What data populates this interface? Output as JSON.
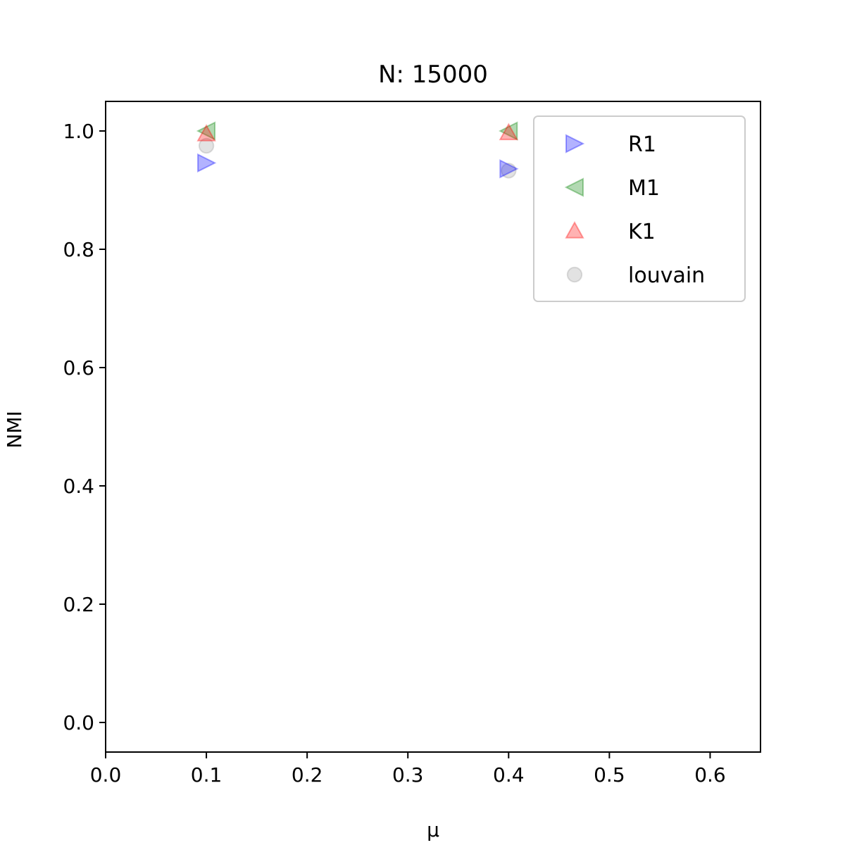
{
  "chart_data": {
    "type": "scatter",
    "title": "N: 15000",
    "xlabel": "μ",
    "ylabel": "NMI",
    "xlim": [
      0.0,
      0.65
    ],
    "ylim": [
      -0.05,
      1.05
    ],
    "xticks": [
      0.0,
      0.1,
      0.2,
      0.3,
      0.4,
      0.5,
      0.6
    ],
    "xtick_labels": [
      "0.0",
      "0.1",
      "0.2",
      "0.3",
      "0.4",
      "0.5",
      "0.6"
    ],
    "yticks": [
      0.0,
      0.2,
      0.4,
      0.6,
      0.8,
      1.0
    ],
    "ytick_labels": [
      "0.0",
      "0.2",
      "0.4",
      "0.6",
      "0.8",
      "1.0"
    ],
    "grid": false,
    "legend_position": "top-right",
    "series": [
      {
        "name": "R1",
        "marker": "triangle-right",
        "color": "#0000ff",
        "x": [
          0.1,
          0.4
        ],
        "y": [
          0.946,
          0.936
        ]
      },
      {
        "name": "M1",
        "marker": "triangle-left",
        "color": "#008000",
        "x": [
          0.1,
          0.4
        ],
        "y": [
          1.0,
          1.0
        ]
      },
      {
        "name": "K1",
        "marker": "triangle-up",
        "color": "#ff0000",
        "x": [
          0.1,
          0.4
        ],
        "y": [
          0.995,
          0.997
        ]
      },
      {
        "name": "louvain",
        "marker": "circle",
        "color": "#a0a0a0",
        "x": [
          0.1,
          0.4
        ],
        "y": [
          0.975,
          0.933
        ]
      }
    ]
  }
}
